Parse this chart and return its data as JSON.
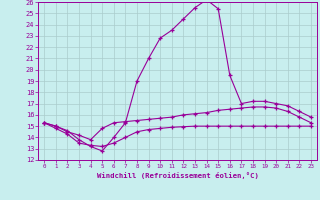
{
  "xlabel": "Windchill (Refroidissement éolien,°C)",
  "xlim": [
    -0.5,
    23.5
  ],
  "ylim": [
    12,
    26
  ],
  "xticks": [
    0,
    1,
    2,
    3,
    4,
    5,
    6,
    7,
    8,
    9,
    10,
    11,
    12,
    13,
    14,
    15,
    16,
    17,
    18,
    19,
    20,
    21,
    22,
    23
  ],
  "yticks": [
    12,
    13,
    14,
    15,
    16,
    17,
    18,
    19,
    20,
    21,
    22,
    23,
    24,
    25,
    26
  ],
  "background_color": "#c8eeee",
  "line_color": "#990099",
  "grid_color": "#aacccc",
  "line1_x": [
    0,
    1,
    2,
    3,
    4,
    5,
    6,
    7,
    8,
    9,
    10,
    11,
    12,
    13,
    14,
    15,
    16,
    17,
    18,
    19,
    20,
    21,
    22,
    23
  ],
  "line1_y": [
    15.3,
    15.0,
    14.6,
    13.8,
    13.2,
    12.8,
    14.0,
    15.3,
    19.0,
    21.0,
    22.8,
    23.5,
    24.5,
    25.5,
    26.2,
    25.4,
    19.5,
    17.0,
    17.2,
    17.2,
    17.0,
    16.8,
    16.3,
    15.8
  ],
  "line2_x": [
    0,
    1,
    2,
    3,
    4,
    5,
    6,
    7,
    8,
    9,
    10,
    11,
    12,
    13,
    14,
    15,
    16,
    17,
    18,
    19,
    20,
    21,
    22,
    23
  ],
  "line2_y": [
    15.3,
    15.0,
    14.5,
    14.2,
    13.8,
    14.8,
    15.3,
    15.4,
    15.5,
    15.6,
    15.7,
    15.8,
    16.0,
    16.1,
    16.2,
    16.4,
    16.5,
    16.6,
    16.7,
    16.7,
    16.6,
    16.3,
    15.8,
    15.3
  ],
  "line3_x": [
    0,
    1,
    2,
    3,
    4,
    5,
    6,
    7,
    8,
    9,
    10,
    11,
    12,
    13,
    14,
    15,
    16,
    17,
    18,
    19,
    20,
    21,
    22,
    23
  ],
  "line3_y": [
    15.3,
    14.8,
    14.3,
    13.5,
    13.3,
    13.2,
    13.5,
    14.0,
    14.5,
    14.7,
    14.8,
    14.9,
    14.95,
    15.0,
    15.0,
    15.0,
    15.0,
    15.0,
    15.0,
    15.0,
    15.0,
    15.0,
    15.0,
    15.0
  ]
}
